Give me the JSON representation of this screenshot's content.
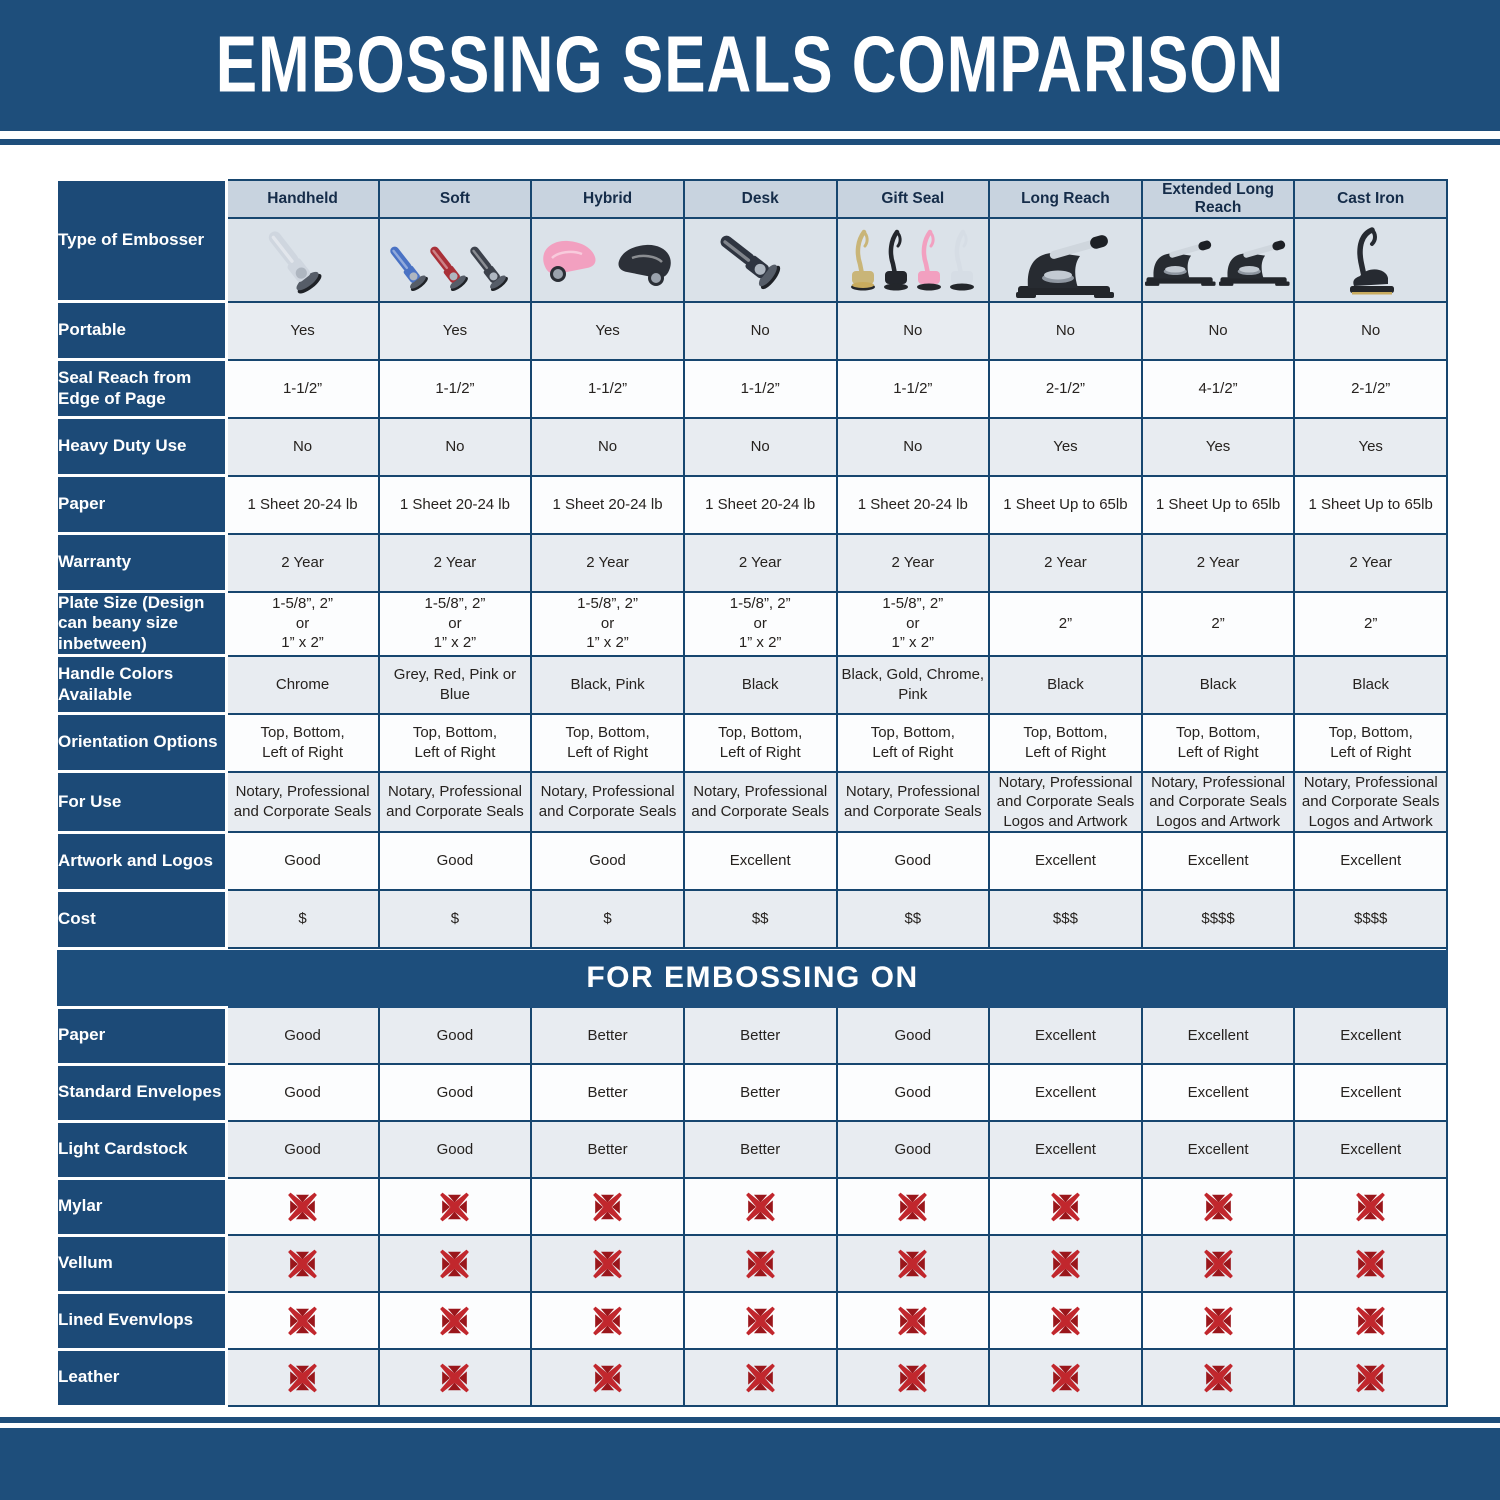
{
  "title": "EMBOSSING SEALS COMPARISON",
  "colors": {
    "navy": "#1e4e7b",
    "left_column_navy": "#1c4a77",
    "grid_border": "#17466f",
    "column_header_bg": "#c8d3df",
    "image_row_bg": "#dbe2e9",
    "row_gray_bg": "#e8ecf1",
    "row_white_bg": "#fcfdfe",
    "x_icon_dark_red": "#9a161b",
    "x_icon_bright_red": "#c1272d"
  },
  "chart_data": {
    "type": "table",
    "title": "EMBOSSING SEALS COMPARISON",
    "row_header_label": "Type of Embosser",
    "columns": [
      "Handheld",
      "Soft",
      "Hybrid",
      "Desk",
      "Gift Seal",
      "Long Reach",
      "Extended Long Reach",
      "Cast Iron"
    ],
    "images": [
      {
        "icon": "handheld-embosser-icon",
        "style": "hand",
        "item_colors": [
          "#cfd6df"
        ]
      },
      {
        "icon": "soft-embosser-icon",
        "style": "hand3",
        "item_colors": [
          "#4a72c4",
          "#a93038",
          "#3c414b"
        ]
      },
      {
        "icon": "hybrid-embosser-icon",
        "style": "hybrid",
        "item_colors": [
          "#f2a0c0",
          "#2c3038"
        ]
      },
      {
        "icon": "desk-embosser-icon",
        "style": "desk",
        "item_colors": [
          "#2e3440"
        ]
      },
      {
        "icon": "gift-seal-embosser-icon",
        "style": "gift",
        "item_colors": [
          "#c9b578",
          "#23262c",
          "#f2a0c0",
          "#d6dde5"
        ]
      },
      {
        "icon": "long-reach-embosser-icon",
        "style": "press",
        "item_colors": [
          "#272b31"
        ]
      },
      {
        "icon": "extended-long-reach-embosser-icon",
        "style": "press2",
        "item_colors": [
          "#272b31",
          "#272b31"
        ]
      },
      {
        "icon": "cast-iron-embosser-icon",
        "style": "upright",
        "item_colors": [
          "#262a31"
        ]
      }
    ],
    "spec_rows": [
      {
        "label": "Portable",
        "values": [
          "Yes",
          "Yes",
          "Yes",
          "No",
          "No",
          "No",
          "No",
          "No"
        ]
      },
      {
        "label": "Seal Reach from Edge of Page",
        "values": [
          "1-1/2”",
          "1-1/2”",
          "1-1/2”",
          "1-1/2”",
          "1-1/2”",
          "2-1/2”",
          "4-1/2”",
          "2-1/2”"
        ]
      },
      {
        "label": "Heavy Duty Use",
        "values": [
          "No",
          "No",
          "No",
          "No",
          "No",
          "Yes",
          "Yes",
          "Yes"
        ]
      },
      {
        "label": "Paper",
        "values": [
          "1 Sheet 20-24 lb",
          "1 Sheet 20-24 lb",
          "1 Sheet 20-24 lb",
          "1 Sheet 20-24 lb",
          "1 Sheet 20-24 lb",
          "1 Sheet Up to 65lb",
          "1 Sheet Up to 65lb",
          "1 Sheet Up to 65lb"
        ]
      },
      {
        "label": "Warranty",
        "values": [
          "2 Year",
          "2 Year",
          "2 Year",
          "2 Year",
          "2 Year",
          "2 Year",
          "2 Year",
          "2 Year"
        ]
      },
      {
        "label": "Plate Size (Design can beany size inbetween)",
        "values": [
          "1-5/8”, 2”\nor\n1” x 2”",
          "1-5/8”, 2”\nor\n1” x 2”",
          "1-5/8”, 2”\nor\n1” x 2”",
          "1-5/8”, 2”\nor\n1” x 2”",
          "1-5/8”, 2”\nor\n1” x 2”",
          "2”",
          "2”",
          "2”"
        ]
      },
      {
        "label": "Handle Colors Available",
        "values": [
          "Chrome",
          "Grey, Red, Pink or Blue",
          "Black, Pink",
          "Black",
          "Black, Gold, Chrome, Pink",
          "Black",
          "Black",
          "Black"
        ]
      },
      {
        "label": "Orientation Options",
        "values": [
          "Top, Bottom,\nLeft of Right",
          "Top, Bottom,\nLeft of Right",
          "Top, Bottom,\nLeft of Right",
          "Top, Bottom,\nLeft of Right",
          "Top, Bottom,\nLeft of Right",
          "Top, Bottom,\nLeft of Right",
          "Top, Bottom,\nLeft of Right",
          "Top, Bottom,\nLeft of Right"
        ]
      },
      {
        "label": "For Use",
        "values": [
          "Notary, Professional\nand Corporate Seals",
          "Notary, Professional\nand Corporate Seals",
          "Notary, Professional\nand Corporate Seals",
          "Notary, Professional\nand Corporate Seals",
          "Notary, Professional\nand Corporate Seals",
          "Notary, Professional\nand Corporate Seals\nLogos and Artwork",
          "Notary, Professional\nand Corporate Seals\nLogos and Artwork",
          "Notary, Professional\nand Corporate Seals\nLogos and Artwork"
        ]
      },
      {
        "label": "Artwork and Logos",
        "values": [
          "Good",
          "Good",
          "Good",
          "Excellent",
          "Good",
          "Excellent",
          "Excellent",
          "Excellent"
        ]
      },
      {
        "label": "Cost",
        "values": [
          "$",
          "$",
          "$",
          "$$",
          "$$",
          "$$$",
          "$$$$",
          "$$$$"
        ]
      }
    ],
    "section_header": "FOR EMBOSSING ON",
    "embossing_rows": [
      {
        "label": "Paper",
        "values": [
          "Good",
          "Good",
          "Better",
          "Better",
          "Good",
          "Excellent",
          "Excellent",
          "Excellent"
        ]
      },
      {
        "label": "Standard Envelopes",
        "values": [
          "Good",
          "Good",
          "Better",
          "Better",
          "Good",
          "Excellent",
          "Excellent",
          "Excellent"
        ]
      },
      {
        "label": "Light Cardstock",
        "values": [
          "Good",
          "Good",
          "Better",
          "Better",
          "Good",
          "Excellent",
          "Excellent",
          "Excellent"
        ]
      },
      {
        "label": "Mylar",
        "values": [
          "X",
          "X",
          "X",
          "X",
          "X",
          "X",
          "X",
          "X"
        ]
      },
      {
        "label": "Vellum",
        "values": [
          "X",
          "X",
          "X",
          "X",
          "X",
          "X",
          "X",
          "X"
        ]
      },
      {
        "label": "Lined Evenvlops",
        "values": [
          "X",
          "X",
          "X",
          "X",
          "X",
          "X",
          "X",
          "X"
        ]
      },
      {
        "label": "Leather",
        "values": [
          "X",
          "X",
          "X",
          "X",
          "X",
          "X",
          "X",
          "X"
        ]
      }
    ]
  }
}
